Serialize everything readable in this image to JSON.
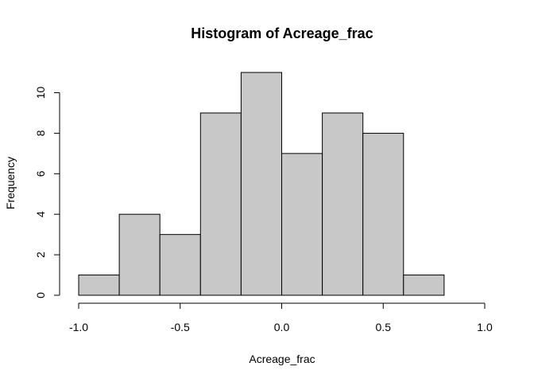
{
  "chart_data": {
    "type": "bar",
    "subtype": "histogram",
    "title": "Histogram of Acreage_frac",
    "xlabel": "Acreage_frac",
    "ylabel": "Frequency",
    "bins": [
      {
        "start": -1.0,
        "end": -0.8,
        "count": 1
      },
      {
        "start": -0.8,
        "end": -0.6,
        "count": 4
      },
      {
        "start": -0.6,
        "end": -0.4,
        "count": 3
      },
      {
        "start": -0.4,
        "end": -0.2,
        "count": 9
      },
      {
        "start": -0.2,
        "end": 0.0,
        "count": 11
      },
      {
        "start": 0.0,
        "end": 0.2,
        "count": 7
      },
      {
        "start": 0.2,
        "end": 0.4,
        "count": 9
      },
      {
        "start": 0.4,
        "end": 0.6,
        "count": 8
      },
      {
        "start": 0.6,
        "end": 0.8,
        "count": 1
      }
    ],
    "xlim": [
      -1.0,
      1.0
    ],
    "ylim": [
      0,
      11
    ],
    "x_ticks": [
      -1.0,
      -0.5,
      0.0,
      0.5,
      1.0
    ],
    "x_tick_labels": [
      "-1.0",
      "-0.5",
      "0.0",
      "0.5",
      "1.0"
    ],
    "y_ticks": [
      0,
      2,
      4,
      6,
      8,
      10
    ],
    "y_tick_labels": [
      "0",
      "2",
      "4",
      "6",
      "8",
      "10"
    ],
    "grid": false,
    "bar_fill": "#c8c8c8",
    "bar_stroke": "#000000"
  }
}
